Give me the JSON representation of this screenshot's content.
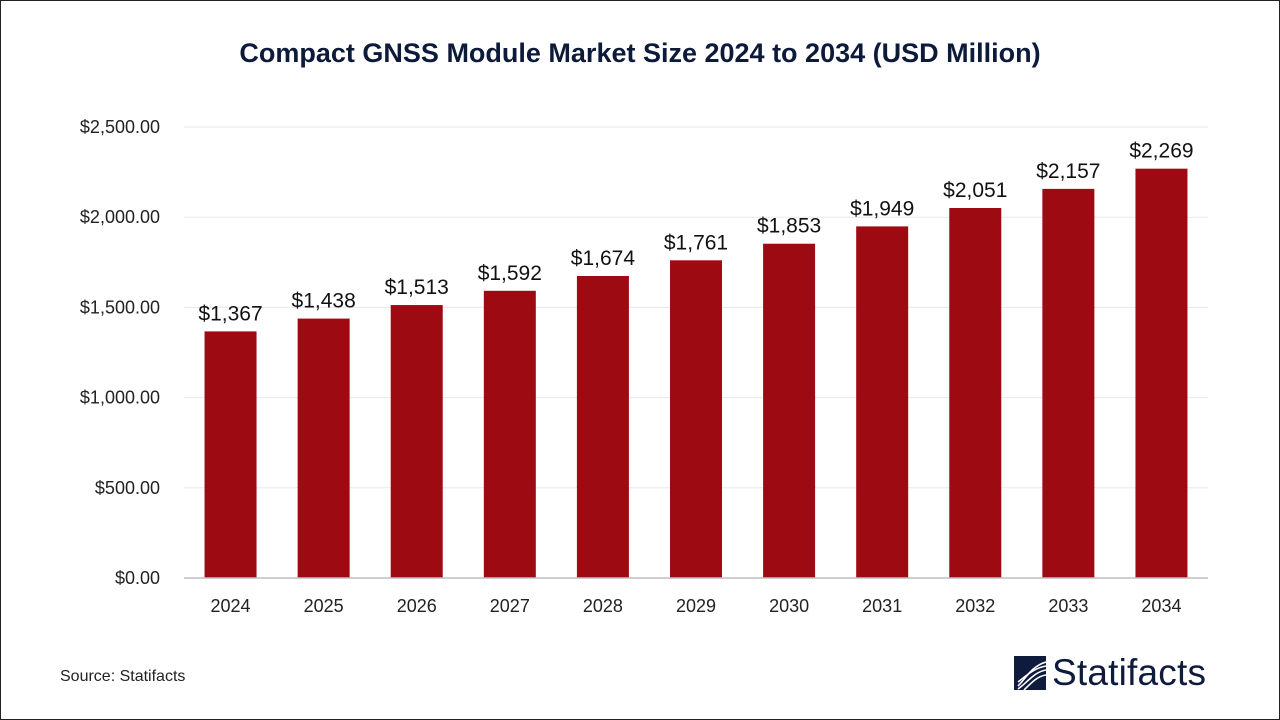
{
  "chart_data": {
    "type": "bar",
    "title": "Compact GNSS Module Market Size 2024 to 2034 (USD Million)",
    "categories": [
      "2024",
      "2025",
      "2026",
      "2027",
      "2028",
      "2029",
      "2030",
      "2031",
      "2032",
      "2033",
      "2034"
    ],
    "values": [
      1367,
      1438,
      1513,
      1592,
      1674,
      1761,
      1853,
      1949,
      2051,
      2157,
      2269
    ],
    "data_labels": [
      "$1,367",
      "$1,438",
      "$1,513",
      "$1,592",
      "$1,674",
      "$1,761",
      "$1,853",
      "$1,949",
      "$2,051",
      "$2,157",
      "$2,269"
    ],
    "yticks": [
      0,
      500,
      1000,
      1500,
      2000,
      2500
    ],
    "ytick_labels": [
      "$0.00",
      "$500.00",
      "$1,000.00",
      "$1,500.00",
      "$2,000.00",
      "$2,500.00"
    ],
    "ylim": [
      0,
      2500
    ],
    "xlabel": "",
    "ylabel": "",
    "grid": true,
    "bar_color": "#9e0a12"
  },
  "footer": {
    "source": "Source: Statifacts",
    "logo_text": "Statifacts"
  }
}
